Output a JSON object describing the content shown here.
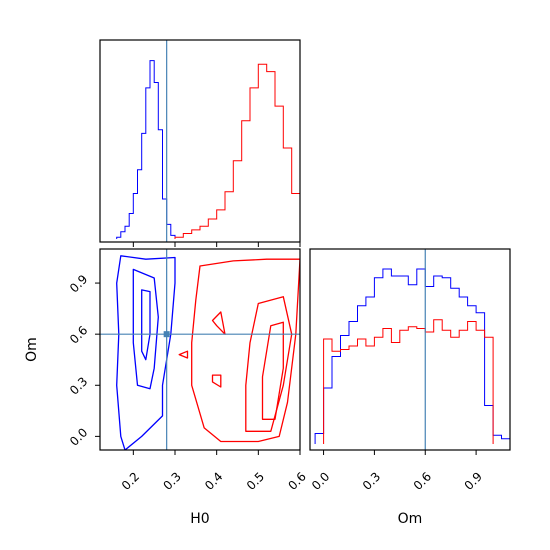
{
  "chart_data": {
    "type": "corner",
    "parameters": [
      "H0",
      "Om"
    ],
    "xlabels": {
      "H0": "H0",
      "Om": "Om"
    },
    "ylabels": {
      "Om": "Om"
    },
    "ranges": {
      "H0": [
        0.12,
        0.6
      ],
      "Om": [
        -0.08,
        1.1
      ]
    },
    "ticks": {
      "H0": [
        "0.2",
        "0.3",
        "0.4",
        "0.5",
        "0.6"
      ],
      "Om": [
        "0.0",
        "0.3",
        "0.6",
        "0.9"
      ]
    },
    "truths": {
      "H0": 0.28,
      "Om": 0.6
    },
    "truth_color": "#4682b4",
    "series": [
      {
        "color": "#0000ff",
        "hist_H0": {
          "edges": [
            0.16,
            0.17,
            0.18,
            0.19,
            0.2,
            0.21,
            0.22,
            0.23,
            0.24,
            0.25,
            0.26,
            0.27,
            0.28,
            0.29,
            0.3
          ],
          "counts": [
            0.01,
            0.04,
            0.07,
            0.14,
            0.25,
            0.38,
            0.58,
            0.83,
            0.98,
            0.86,
            0.6,
            0.22,
            0.08,
            0.02
          ]
        },
        "hist_Om": {
          "edges": [
            -0.05,
            0.0,
            0.05,
            0.1,
            0.15,
            0.2,
            0.25,
            0.3,
            0.35,
            0.4,
            0.45,
            0.5,
            0.55,
            0.6,
            0.65,
            0.7,
            0.75,
            0.8,
            0.85,
            0.9,
            0.95,
            1.0,
            1.05,
            1.1
          ],
          "counts": [
            0.06,
            0.32,
            0.5,
            0.62,
            0.7,
            0.79,
            0.84,
            0.95,
            1.0,
            0.96,
            0.96,
            0.91,
            1.0,
            0.9,
            0.96,
            0.95,
            0.89,
            0.84,
            0.79,
            0.75,
            0.22,
            0.05,
            0.03
          ]
        },
        "contours": [
          [
            [
              0.17,
              1.06
            ],
            [
              0.23,
              1.04
            ],
            [
              0.3,
              1.05
            ],
            [
              0.3,
              0.9
            ],
            [
              0.29,
              0.6
            ],
            [
              0.27,
              0.3
            ],
            [
              0.27,
              0.12
            ],
            [
              0.22,
              0.0
            ],
            [
              0.18,
              -0.08
            ],
            [
              0.17,
              0.0
            ],
            [
              0.16,
              0.3
            ],
            [
              0.165,
              0.6
            ],
            [
              0.16,
              0.9
            ],
            [
              0.17,
              1.06
            ]
          ],
          [
            [
              0.2,
              0.98
            ],
            [
              0.25,
              0.93
            ],
            [
              0.26,
              0.7
            ],
            [
              0.25,
              0.4
            ],
            [
              0.24,
              0.28
            ],
            [
              0.21,
              0.3
            ],
            [
              0.2,
              0.55
            ],
            [
              0.2,
              0.8
            ],
            [
              0.2,
              0.98
            ]
          ],
          [
            [
              0.22,
              0.86
            ],
            [
              0.24,
              0.85
            ],
            [
              0.24,
              0.6
            ],
            [
              0.23,
              0.45
            ],
            [
              0.22,
              0.5
            ],
            [
              0.22,
              0.7
            ],
            [
              0.22,
              0.86
            ]
          ]
        ]
      },
      {
        "color": "#ff0000",
        "hist_H0": {
          "edges": [
            0.3,
            0.32,
            0.34,
            0.36,
            0.38,
            0.4,
            0.42,
            0.44,
            0.46,
            0.48,
            0.5,
            0.52,
            0.54,
            0.56,
            0.58,
            0.6
          ],
          "counts": [
            0.01,
            0.03,
            0.05,
            0.07,
            0.11,
            0.16,
            0.26,
            0.43,
            0.65,
            0.83,
            0.96,
            0.92,
            0.73,
            0.5,
            0.25
          ]
        },
        "hist_Om": {
          "edges": [
            0.0,
            0.05,
            0.1,
            0.15,
            0.2,
            0.25,
            0.3,
            0.35,
            0.4,
            0.45,
            0.5,
            0.55,
            0.6,
            0.65,
            0.7,
            0.75,
            0.8,
            0.85,
            0.9,
            0.95,
            1.0
          ],
          "counts": [
            0.6,
            0.53,
            0.54,
            0.56,
            0.6,
            0.56,
            0.61,
            0.66,
            0.58,
            0.65,
            0.67,
            0.66,
            0.64,
            0.71,
            0.65,
            0.61,
            0.65,
            0.7,
            0.65,
            0.61
          ]
        },
        "contours": [
          [
            [
              0.36,
              1.0
            ],
            [
              0.44,
              1.03
            ],
            [
              0.52,
              1.04
            ],
            [
              0.6,
              1.04
            ],
            [
              0.59,
              0.6
            ],
            [
              0.57,
              0.2
            ],
            [
              0.55,
              0.0
            ],
            [
              0.5,
              -0.03
            ],
            [
              0.41,
              -0.03
            ],
            [
              0.37,
              0.05
            ],
            [
              0.34,
              0.3
            ],
            [
              0.34,
              0.55
            ],
            [
              0.35,
              0.8
            ],
            [
              0.36,
              1.0
            ]
          ],
          [
            [
              0.5,
              0.78
            ],
            [
              0.56,
              0.82
            ],
            [
              0.58,
              0.6
            ],
            [
              0.56,
              0.3
            ],
            [
              0.53,
              0.03
            ],
            [
              0.47,
              0.03
            ],
            [
              0.47,
              0.3
            ],
            [
              0.48,
              0.55
            ],
            [
              0.5,
              0.78
            ]
          ],
          [
            [
              0.53,
              0.65
            ],
            [
              0.56,
              0.67
            ],
            [
              0.56,
              0.4
            ],
            [
              0.54,
              0.1
            ],
            [
              0.51,
              0.1
            ],
            [
              0.51,
              0.35
            ],
            [
              0.53,
              0.65
            ]
          ],
          [
            [
              0.39,
              0.68
            ],
            [
              0.41,
              0.73
            ],
            [
              0.42,
              0.6
            ],
            [
              0.4,
              0.65
            ],
            [
              0.39,
              0.68
            ]
          ],
          [
            [
              0.39,
              0.36
            ],
            [
              0.41,
              0.36
            ],
            [
              0.41,
              0.29
            ],
            [
              0.39,
              0.32
            ],
            [
              0.39,
              0.36
            ]
          ],
          [
            [
              0.31,
              0.48
            ],
            [
              0.33,
              0.5
            ],
            [
              0.33,
              0.46
            ],
            [
              0.31,
              0.48
            ]
          ]
        ]
      }
    ]
  }
}
